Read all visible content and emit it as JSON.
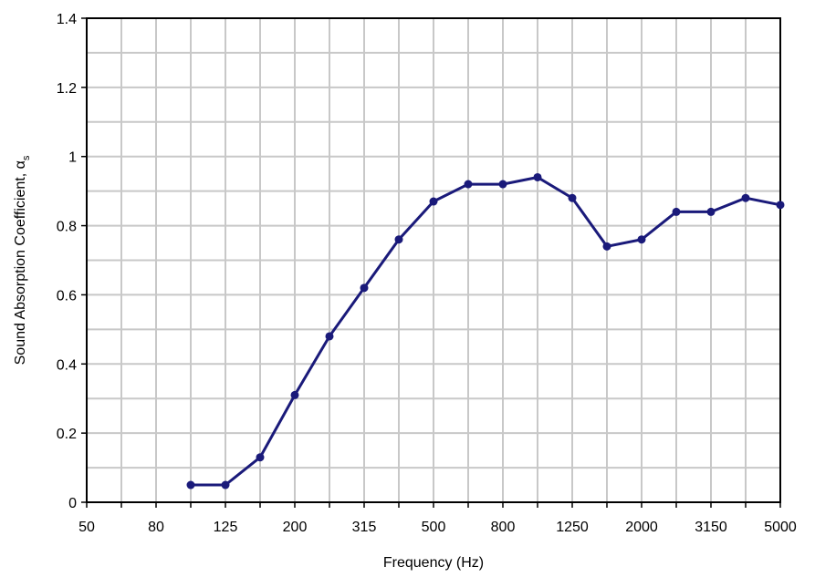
{
  "chart_data": {
    "type": "line",
    "xlabel": "Frequency (Hz)",
    "ylabel": "Sound Absorption Coefficient, α",
    "ylabel_subscript": "s",
    "ylim": [
      0,
      1.4
    ],
    "yticks": [
      "0",
      "0.2",
      "0.4",
      "0.6",
      "0.8",
      "1",
      "1.2",
      "1.4"
    ],
    "xtick_labels": [
      "50",
      "80",
      "125",
      "200",
      "315",
      "500",
      "800",
      "1250",
      "2000",
      "3150",
      "5000"
    ],
    "x_categories": [
      "50",
      "63",
      "80",
      "100",
      "125",
      "160",
      "200",
      "250",
      "315",
      "400",
      "500",
      "630",
      "800",
      "1000",
      "1250",
      "1600",
      "2000",
      "2500",
      "3150",
      "4000",
      "5000"
    ],
    "grid": true,
    "colors": {
      "series": "#1a1a7a",
      "grid": "#c8c8c8"
    },
    "series": [
      {
        "x": [
          "100",
          "125",
          "160",
          "200",
          "250",
          "315",
          "400",
          "500",
          "630",
          "800",
          "1000",
          "1250",
          "1600",
          "2000",
          "2500",
          "3150",
          "4000",
          "5000"
        ],
        "values": [
          0.05,
          0.05,
          0.13,
          0.31,
          0.48,
          0.62,
          0.76,
          0.87,
          0.92,
          0.92,
          0.94,
          0.88,
          0.74,
          0.76,
          0.84,
          0.84,
          0.88,
          0.86
        ]
      }
    ]
  }
}
